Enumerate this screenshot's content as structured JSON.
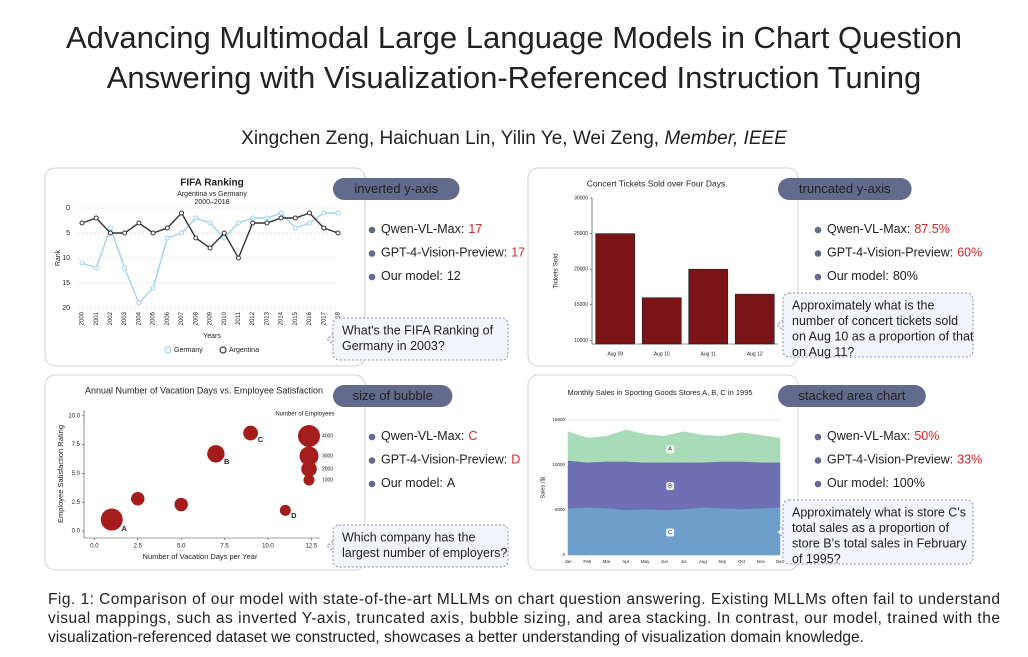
{
  "title": [
    "Advancing Multimodal Large Language Models in Chart Question",
    "Answering with Visualization-Referenced Instruction Tuning"
  ],
  "authors": {
    "names": "Xingchen Zeng, Haichuan Lin, Yilin Ye, Wei Zeng,",
    "membership": "Member, IEEE"
  },
  "panels": [
    {
      "tag": "inverted y-axis",
      "answers": [
        {
          "model": "Qwen-VL-Max:",
          "answer": "17",
          "color": "#d62728"
        },
        {
          "model": "GPT-4-Vision-Preview:",
          "answer": "17",
          "color": "#d62728"
        },
        {
          "model": "Our model:",
          "answer": "12",
          "color": "#222222"
        }
      ],
      "question": [
        "What's the FIFA Ranking of",
        "Germany in 2003?"
      ],
      "chart": {
        "type": "line",
        "title": "FIFA Ranking",
        "subtitle": [
          "Argentina vs Germany",
          "2000–2018"
        ],
        "y_label": "Rank",
        "x_label": "Years",
        "categories": [
          "2000",
          "2001",
          "2002",
          "2003",
          "2004",
          "2005",
          "2006",
          "2007",
          "2008",
          "2009",
          "2010",
          "2011",
          "2012",
          "2013",
          "2014",
          "2015",
          "2016",
          "2017",
          "2018"
        ],
        "series": [
          {
            "name": "Germany",
            "color": "#9fd3ef",
            "values": [
              11,
              12,
              4,
              12,
              19,
              16,
              6,
              5,
              2,
              3,
              6,
              3,
              2,
              2,
              1,
              4,
              3,
              1,
              1
            ]
          },
          {
            "name": "Argentina",
            "color": "#333333",
            "values": [
              3,
              2,
              5,
              5,
              3,
              5,
              4,
              1,
              6,
              8,
              5,
              10,
              3,
              3,
              2,
              2,
              1,
              4,
              5
            ]
          }
        ],
        "ylim": [
          0,
          20
        ],
        "yticks": [
          0,
          5,
          10,
          15,
          20
        ],
        "inverted_y": true,
        "grid": true
      }
    },
    {
      "tag": "truncated y-axis",
      "answers": [
        {
          "model": "Qwen-VL-Max:",
          "answer": "87.5%",
          "color": "#d62728"
        },
        {
          "model": "GPT-4-Vision-Preview:",
          "answer": "60%",
          "color": "#d62728"
        },
        {
          "model": "Our model:",
          "answer": "80%",
          "color": "#222222"
        }
      ],
      "question": [
        "Approximately what is the",
        "number of concert tickets sold",
        "on Aug 10 as a proportion of that",
        "on Aug 11?"
      ],
      "chart": {
        "type": "bar",
        "title": "Concert Tickets Sold over Four Days",
        "y_label": "Tickets Sold",
        "categories": [
          "Aug 09",
          "Aug 10",
          "Aug 11",
          "Aug 12"
        ],
        "values": [
          25000,
          16000,
          20000,
          16500
        ],
        "color": "#7b1416",
        "ylim": [
          9500,
          30000
        ],
        "yticks": [
          10000,
          15000,
          20000,
          25000,
          30000
        ],
        "grid": false
      }
    },
    {
      "tag": "size of bubble",
      "answers": [
        {
          "model": "Qwen-VL-Max:",
          "answer": "C",
          "color": "#d62728"
        },
        {
          "model": "GPT-4-Vision-Preview:",
          "answer": "D",
          "color": "#d62728"
        },
        {
          "model": "Our model:",
          "answer": "A",
          "color": "#222222"
        }
      ],
      "question": [
        "Which company has the",
        "largest number of employers?"
      ],
      "chart": {
        "type": "bubble",
        "title": "Annual Number of Vacation Days vs. Employee Satisfaction",
        "x_label": "Number of Vacation Days per Year",
        "y_label": "Employee Satisfaction Rating",
        "x": [
          1,
          2.5,
          5,
          7,
          9,
          11
        ],
        "values": [
          1,
          2.8,
          2.3,
          6.7,
          8.5,
          1.8
        ],
        "sizes": [
          4000,
          1500,
          1500,
          2500,
          1800,
          1000
        ],
        "labels": [
          "A",
          null,
          null,
          "B",
          "C",
          "D"
        ],
        "color": "#a51c1c",
        "xlim": [
          -0.6,
          13
        ],
        "ylim": [
          -0.6,
          10.5
        ],
        "xticks": [
          {
            "value": 0,
            "label": "0.0"
          },
          2.5,
          {
            "value": 5,
            "label": "5.0"
          },
          7.5,
          {
            "value": 10,
            "label": "10.0"
          },
          12.5
        ],
        "yticks": [
          {
            "value": 0,
            "label": "0.0"
          },
          2.5,
          {
            "value": 5,
            "label": "5.0"
          },
          7.5,
          {
            "value": 10,
            "label": "10.0"
          }
        ],
        "size_legend": {
          "title": "Number of Employees",
          "values": [
            4000,
            3000,
            2000,
            1000
          ]
        }
      }
    },
    {
      "tag": "stacked area chart",
      "answers": [
        {
          "model": "Qwen-VL-Max:",
          "answer": "50%",
          "color": "#d62728"
        },
        {
          "model": "GPT-4-Vision-Preview:",
          "answer": "33%",
          "color": "#d62728"
        },
        {
          "model": "Our model:",
          "answer": "100%",
          "color": "#222222"
        }
      ],
      "question": [
        "Approximately what is store C's",
        "total sales as a proportion of",
        "store B's total sales in February",
        "of 1995?"
      ],
      "chart": {
        "type": "stacked_area",
        "title": "Monthly Sales in Sporting Goods Stores A, B, C in 1995",
        "y_label": "Sales ($)",
        "categories": [
          "Jan",
          "Feb",
          "Mar",
          "Apr",
          "May",
          "Jun",
          "Jul",
          "Aug",
          "Sep",
          "Oct",
          "Nov",
          "Dec"
        ],
        "series": [
          {
            "name": "C",
            "color": "#6e9fcb",
            "values": [
              5200,
              5300,
              5200,
              5000,
              5100,
              5000,
              5100,
              5300,
              5200,
              5100,
              5200,
              5300
            ]
          },
          {
            "name": "B",
            "color": "#6f70b3",
            "values": [
              5300,
              5000,
              5200,
              5400,
              5200,
              5300,
              5200,
              5000,
              5200,
              5300,
              5100,
              5000
            ]
          },
          {
            "name": "A",
            "color": "#a8dcb8",
            "values": [
              3200,
              2700,
              2800,
              3500,
              3100,
              2900,
              3400,
              3000,
              2800,
              3200,
              3000,
              2700
            ]
          }
        ],
        "ylim": [
          0,
          15000
        ],
        "yticks": [
          0,
          5000,
          10000,
          15000
        ],
        "grid": true
      }
    }
  ],
  "caption": [
    "Fig. 1: Comparison of our model with state-of-the-art MLLMs on chart question answering. Existing MLLMs often fail to understand",
    "visual mappings, such as inverted Y-axis, truncated axis, bubble sizing, and area stacking. In contrast, our model, trained with the",
    "visualization-referenced dataset we constructed, showcases a better understanding of visualization domain knowledge."
  ]
}
